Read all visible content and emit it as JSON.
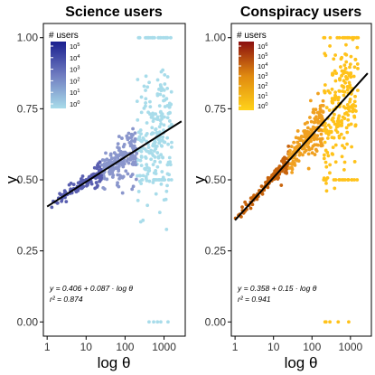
{
  "chart_data": [
    {
      "type": "scatter",
      "title": "Science users",
      "xlabel": "log θ",
      "ylabel": "y",
      "x_scale": "log10",
      "xlim": [
        0.8,
        3500
      ],
      "ylim": [
        -0.05,
        1.05
      ],
      "x_ticks": [
        1,
        10,
        100,
        1000
      ],
      "x_tick_labels": [
        "1",
        "10",
        "100",
        "1000"
      ],
      "y_ticks": [
        0,
        0.25,
        0.5,
        0.75,
        1
      ],
      "y_tick_labels": [
        "0.00",
        "0.25",
        "0.50",
        "0.75",
        "1.00"
      ],
      "grid": false,
      "legend": {
        "title": "# users",
        "placement": "top-left",
        "labels": [
          "10",
          "10",
          "10",
          "10",
          "10",
          "10"
        ],
        "label_exponents": [
          "5",
          "4",
          "3",
          "2",
          "1",
          "0"
        ],
        "color_high": "#1a1f8f",
        "color_low": "#a8dcea"
      },
      "fit": {
        "intercept": 0.406,
        "slope": 0.087,
        "x_from": 1,
        "x_to": 2800
      },
      "annotation_lines": [
        "y = 0.406 + 0.087 · log θ",
        "r² = 0.874"
      ],
      "point_colors": {
        "low": "#a8dcea",
        "mid": "#8a96cc",
        "high": "#5a5fb0"
      },
      "seed": 11
    },
    {
      "type": "scatter",
      "title": "Conspiracy users",
      "xlabel": "log θ",
      "ylabel": "y",
      "x_scale": "log10",
      "xlim": [
        0.8,
        3500
      ],
      "ylim": [
        -0.05,
        1.05
      ],
      "x_ticks": [
        1,
        10,
        100,
        1000
      ],
      "x_tick_labels": [
        "1",
        "10",
        "100",
        "1000"
      ],
      "y_ticks": [
        0,
        0.25,
        0.5,
        0.75,
        1
      ],
      "y_tick_labels": [
        "0.00",
        "0.25",
        "0.50",
        "0.75",
        "1.00"
      ],
      "grid": false,
      "legend": {
        "title": "# users",
        "placement": "top-left",
        "labels": [
          "10",
          "10",
          "10",
          "10",
          "10",
          "10",
          "10"
        ],
        "label_exponents": [
          "6",
          "5",
          "4",
          "3",
          "2",
          "1",
          "0"
        ],
        "color_high": "#8b0f0f",
        "color_low": "#ffd21a"
      },
      "fit": {
        "intercept": 0.358,
        "slope": 0.15,
        "x_from": 1,
        "x_to": 2800
      },
      "annotation_lines": [
        "y = 0.358 + 0.15 · log θ",
        "r² = 0.941"
      ],
      "point_colors": {
        "low": "#ffc21a",
        "mid": "#f0a020",
        "high": "#c8640c"
      },
      "seed": 23
    }
  ]
}
